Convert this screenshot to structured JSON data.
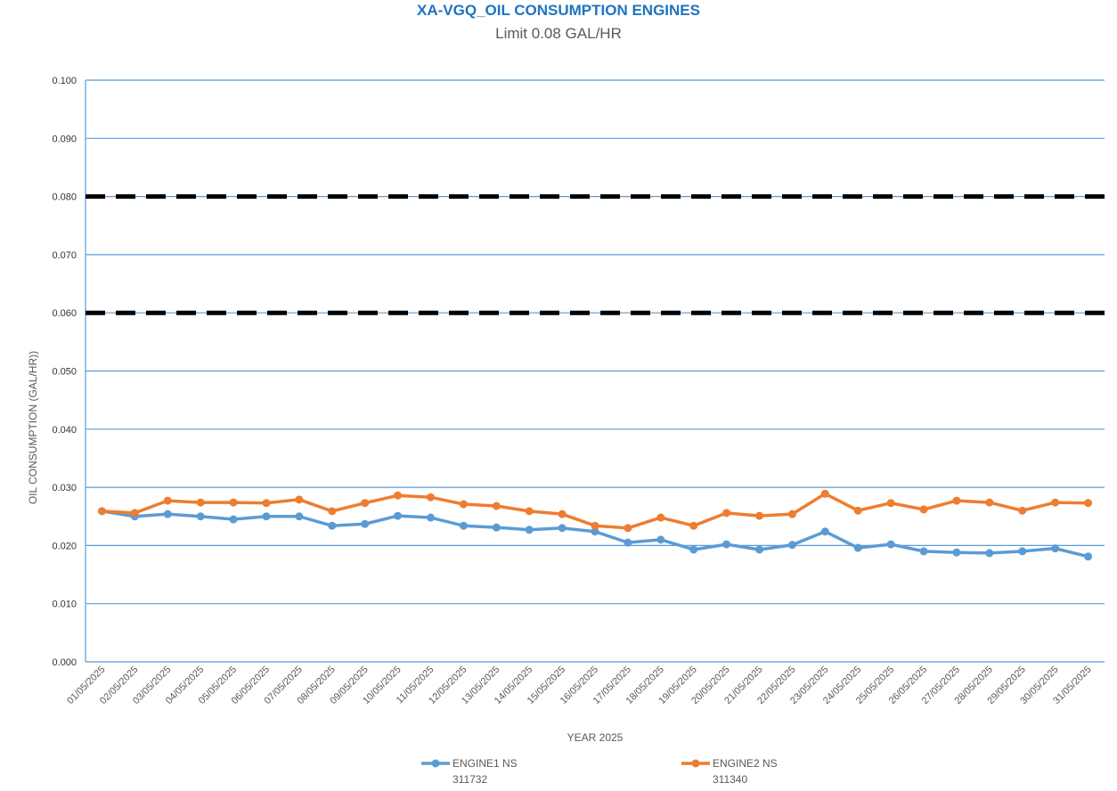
{
  "chart_data": {
    "type": "line",
    "title": "XA-VGQ_OIL CONSUMPTION ENGINES",
    "subtitle": "Limit 0.08 GAL/HR",
    "xlabel": "YEAR  2025",
    "ylabel": "OIL CONSUMPTION (GAL/HR))",
    "ylim": [
      0,
      0.1
    ],
    "yticks": [
      "0.000",
      "0.010",
      "0.020",
      "0.030",
      "0.040",
      "0.050",
      "0.060",
      "0.070",
      "0.080",
      "0.090",
      "0.100"
    ],
    "grid": true,
    "legend_position": "bottom",
    "categories": [
      "01/05/2025",
      "02/05/2025",
      "03/05/2025",
      "04/05/2025",
      "05/05/2025",
      "06/05/2025",
      "07/05/2025",
      "08/05/2025",
      "09/05/2025",
      "10/05/2025",
      "11/05/2025",
      "12/05/2025",
      "13/05/2025",
      "14/05/2025",
      "15/05/2025",
      "16/05/2025",
      "17/05/2025",
      "18/05/2025",
      "19/05/2025",
      "20/05/2025",
      "21/05/2025",
      "22/05/2025",
      "23/05/2025",
      "24/05/2025",
      "25/05/2025",
      "26/05/2025",
      "27/05/2025",
      "28/05/2025",
      "29/05/2025",
      "30/05/2025",
      "31/05/2025"
    ],
    "series": [
      {
        "name": "ENGINE1 NS",
        "sub": "311732",
        "color": "#5b9bd5",
        "values": [
          0.0259,
          0.025,
          0.0254,
          0.025,
          0.0245,
          0.025,
          0.025,
          0.0234,
          0.0237,
          0.0251,
          0.0248,
          0.0234,
          0.0231,
          0.0227,
          0.023,
          0.0224,
          0.0205,
          0.021,
          0.0193,
          0.0202,
          0.0193,
          0.0201,
          0.0224,
          0.0196,
          0.0202,
          0.019,
          0.0188,
          0.0187,
          0.019,
          0.0195,
          0.0181
        ]
      },
      {
        "name": "ENGINE2 NS",
        "sub": "311340",
        "color": "#ed7d31",
        "values": [
          0.0259,
          0.0256,
          0.0277,
          0.0274,
          0.0274,
          0.0273,
          0.0279,
          0.0259,
          0.0273,
          0.0286,
          0.0283,
          0.0271,
          0.0268,
          0.0259,
          0.0254,
          0.0234,
          0.023,
          0.0248,
          0.0234,
          0.0256,
          0.0251,
          0.0254,
          0.0289,
          0.026,
          0.0273,
          0.0262,
          0.0277,
          0.0274,
          0.026,
          0.0274,
          0.0273
        ]
      }
    ],
    "reference_lines": [
      {
        "value": 0.08,
        "style": "dashed",
        "color": "#000000"
      },
      {
        "value": 0.06,
        "style": "dashed",
        "color": "#000000"
      }
    ]
  }
}
